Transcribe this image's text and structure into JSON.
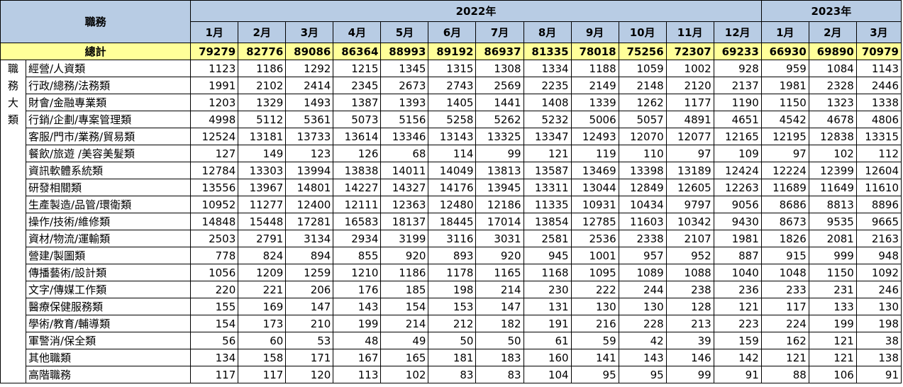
{
  "header": {
    "job_label": "職務",
    "years": [
      {
        "label": "2022年",
        "span": 12
      },
      {
        "label": "2023年",
        "span": 3
      }
    ],
    "months": [
      "1月",
      "2月",
      "3月",
      "4月",
      "5月",
      "6月",
      "7月",
      "8月",
      "9月",
      "10月",
      "11月",
      "12月",
      "1月",
      "2月",
      "3月"
    ]
  },
  "total": {
    "label": "總計",
    "values": [
      79279,
      82776,
      89086,
      86364,
      88993,
      89192,
      86937,
      81335,
      78018,
      75256,
      72307,
      69233,
      66930,
      69890,
      70979
    ]
  },
  "side_label": [
    "職",
    "務",
    "大",
    "類"
  ],
  "rows": [
    {
      "category": "經營/人資類",
      "values": [
        1123,
        1186,
        1292,
        1215,
        1345,
        1315,
        1308,
        1334,
        1188,
        1059,
        1002,
        928,
        959,
        1084,
        1143
      ]
    },
    {
      "category": "行政/總務/法務類",
      "values": [
        1991,
        2102,
        2414,
        2345,
        2673,
        2743,
        2569,
        2235,
        2149,
        2148,
        2120,
        2137,
        1981,
        2328,
        2446
      ]
    },
    {
      "category": "財會/金融專業類",
      "values": [
        1203,
        1329,
        1493,
        1387,
        1393,
        1405,
        1441,
        1408,
        1339,
        1262,
        1177,
        1190,
        1150,
        1323,
        1338
      ]
    },
    {
      "category": "行銷/企劃/專案管理類",
      "values": [
        4998,
        5112,
        5361,
        5073,
        5156,
        5258,
        5262,
        5232,
        5006,
        5057,
        4891,
        4651,
        4542,
        4678,
        4806
      ]
    },
    {
      "category": "客服/門市/業務/貿易類",
      "values": [
        12524,
        13181,
        13733,
        13614,
        13346,
        13143,
        13325,
        13347,
        12493,
        12070,
        12077,
        12165,
        12195,
        12838,
        13315
      ]
    },
    {
      "category": "餐飲/旅遊 /美容美髮類",
      "values": [
        127,
        149,
        123,
        126,
        68,
        114,
        99,
        121,
        119,
        110,
        97,
        109,
        97,
        102,
        112
      ]
    },
    {
      "category": "資訊軟體系統類",
      "values": [
        12784,
        13303,
        13994,
        13838,
        14011,
        14049,
        13813,
        13587,
        13469,
        13398,
        13189,
        12424,
        12224,
        12399,
        12604
      ]
    },
    {
      "category": "研發相關類",
      "values": [
        13556,
        13967,
        14801,
        14227,
        14327,
        14176,
        13945,
        13311,
        13044,
        12849,
        12605,
        12263,
        11689,
        11649,
        11610
      ]
    },
    {
      "category": "生產製造/品管/環衛類",
      "values": [
        10952,
        11277,
        12400,
        12111,
        12363,
        12480,
        12186,
        11335,
        10931,
        10434,
        9797,
        9056,
        8686,
        8813,
        8896
      ]
    },
    {
      "category": "操作/技術/維修類",
      "values": [
        14848,
        15448,
        17281,
        16583,
        18137,
        18445,
        17014,
        13854,
        12785,
        11603,
        10342,
        9430,
        8673,
        9535,
        9665
      ]
    },
    {
      "category": "資材/物流/運輸類",
      "values": [
        2503,
        2791,
        3134,
        2934,
        3199,
        3116,
        3031,
        2581,
        2536,
        2338,
        2107,
        1981,
        1826,
        2081,
        2163
      ]
    },
    {
      "category": "營建/製圖類",
      "values": [
        778,
        824,
        894,
        855,
        920,
        893,
        920,
        945,
        1001,
        957,
        952,
        887,
        915,
        999,
        948
      ]
    },
    {
      "category": "傳播藝術/設計類",
      "values": [
        1056,
        1209,
        1259,
        1210,
        1186,
        1178,
        1165,
        1168,
        1095,
        1089,
        1088,
        1040,
        1048,
        1150,
        1092
      ]
    },
    {
      "category": "文字/傳媒工作類",
      "values": [
        220,
        221,
        206,
        176,
        185,
        198,
        214,
        230,
        222,
        244,
        238,
        236,
        233,
        231,
        246
      ]
    },
    {
      "category": "醫療保健服務類",
      "values": [
        155,
        169,
        147,
        143,
        154,
        153,
        147,
        131,
        130,
        130,
        128,
        121,
        117,
        133,
        130
      ]
    },
    {
      "category": "學術/教育/輔導類",
      "values": [
        154,
        173,
        210,
        199,
        214,
        212,
        182,
        191,
        216,
        228,
        213,
        223,
        224,
        199,
        198
      ]
    },
    {
      "category": "軍警消/保全類",
      "values": [
        56,
        60,
        53,
        48,
        49,
        50,
        50,
        61,
        59,
        42,
        39,
        159,
        162,
        121,
        38
      ]
    },
    {
      "category": "其他職類",
      "values": [
        134,
        158,
        171,
        167,
        165,
        181,
        183,
        160,
        141,
        143,
        146,
        142,
        121,
        121,
        138
      ]
    },
    {
      "category": "高階職務",
      "values": [
        117,
        117,
        120,
        113,
        102,
        83,
        83,
        104,
        95,
        95,
        99,
        91,
        88,
        106,
        91
      ]
    }
  ],
  "colors": {
    "header_bg": "#b8cce4",
    "total_bg": "#ffff99",
    "border": "#000000"
  }
}
